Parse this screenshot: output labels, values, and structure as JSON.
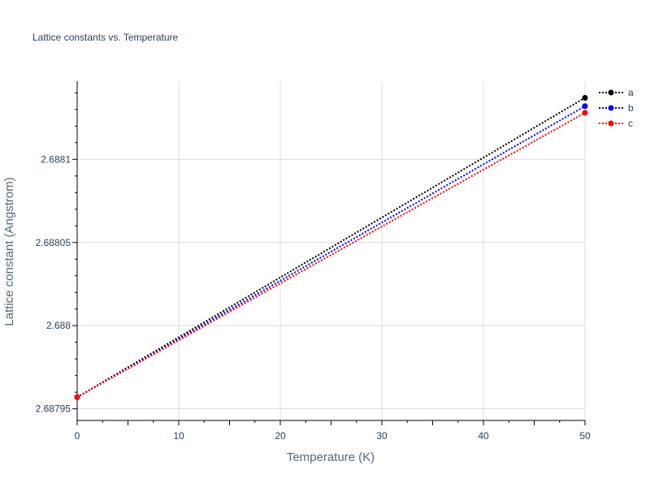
{
  "chart_data": {
    "type": "line",
    "title": "Lattice constants vs. Temperature",
    "xlabel": "Temperature (K)",
    "ylabel": "Lattice constant (Angstrom)",
    "xlim": [
      0,
      50
    ],
    "ylim": [
      2.687943,
      2.688147
    ],
    "x_ticks": [
      0,
      10,
      20,
      30,
      40,
      50
    ],
    "x_tick_labels": [
      "0",
      "10",
      "20",
      "30",
      "40",
      "50"
    ],
    "y_ticks": [
      2.68795,
      2.688,
      2.68805,
      2.6881
    ],
    "y_tick_labels": [
      "2.68795",
      "2.688",
      "2.68805",
      "2.6881"
    ],
    "grid": true,
    "legend_position": "top-right",
    "series": [
      {
        "name": "a",
        "color": "#000000",
        "x": [
          0,
          50
        ],
        "y": [
          2.687957,
          2.688137
        ]
      },
      {
        "name": "b",
        "color": "#0000ff",
        "x": [
          0,
          50
        ],
        "y": [
          2.687957,
          2.688132
        ]
      },
      {
        "name": "c",
        "color": "#ff0000",
        "x": [
          0,
          50
        ],
        "y": [
          2.687957,
          2.688128
        ]
      }
    ]
  }
}
